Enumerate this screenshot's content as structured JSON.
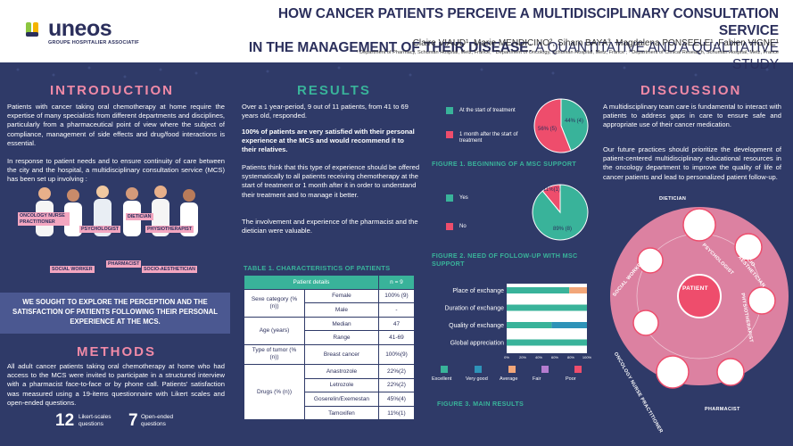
{
  "header": {
    "logo_text": "uneos",
    "logo_sub": "GROUPE HOSPITALIER ASSOCIATIF",
    "title_main": "HOW CANCER PATIENTS PERCEIVE A MULTIDISCIPLINARY CONSULTATION SERVICE",
    "title_line2": "IN THE MANAGEMENT OF THEIR DISEASE",
    "title_sub": ": A QUANTITATIVE AND A QUALITATIVE STUDY",
    "authors": "Claire VIAUD¹, Marie MENDICINO², Siham BAYA³, Magdalena PONSEELE¹, Fabien VIGNE¹",
    "affiliations": "¹ Department of Pharmacy, Schuman Hospital, Metz, France; ² Department of Oncology, Schuman Hospital, Metz, France ; ³ Department of Clinical Research, Schuman Hospital, Metz, France"
  },
  "introduction": {
    "title": "INTRODUCTION",
    "p1": "Patients with cancer taking oral chemotherapy at home require the expertise of many specialists from different departments and disciplines, particularly from a pharmaceutical point of view where the subject of compliance, management of side effects and drug/food interactions is essential.",
    "p2": "In response to patient needs and to ensure continuity of care between the city and the hospital, a multidisciplinary consultation service (MCS) has been set up involving :",
    "roles": [
      "ONCOLOGY NURSE PRACTITIONER",
      "PSYCHOLOGIST",
      "DIETICIAN",
      "PHYSIOTHERAPIST",
      "SOCIAL WORKER",
      "PHARMACIST",
      "SOCIO-AESTHETICIAN"
    ],
    "highlight": "WE SOUGHT TO EXPLORE THE PERCEPTION AND THE SATISFACTION OF PATIENTS FOLLOWING THEIR PERSONAL EXPERIENCE AT THE MCS."
  },
  "methods": {
    "title": "METHODS",
    "p1": "All adult cancer patients taking oral chemotherapy at home who had access to the MCS were invited to participate in a structured interview with a pharmacist face-to-face or by phone call. Patients' satisfaction was measured using a 19-items questionnaire with Likert scales and open-ended questions.",
    "stat1_num": "12",
    "stat1_lbl": "Likert-scales questions",
    "stat2_num": "7",
    "stat2_lbl": "Open-ended questions"
  },
  "results": {
    "title": "RESULTS",
    "p1": "Over a 1 year-period, 9 out of 11 patients, from 41 to 69 years old, responded.",
    "p2": "100% of patients are very satisfied with their personal experience at the MCS and would recommend it to their relatives.",
    "p3": "Patients think that this type of experience should be offered systematically to all patients receiving chemotherapy at the start of treatment or 1 month after it in order to understand their treatment and to manage it better.",
    "p4": "The involvement and experience of the pharmacist and the dietician were valuable."
  },
  "table": {
    "title": "TABLE 1. CHARACTERISTICS OF PATIENTS",
    "head_left": "Patient details",
    "head_right": "n = 9",
    "rows": {
      "sex_cat": "Sexe category (% (n))",
      "female": "Female",
      "female_v": "100% (9)",
      "male": "Male",
      "male_v": "-",
      "age_cat": "Age     (years)",
      "median": "Median",
      "median_v": "47",
      "range": "Range",
      "range_v": "41-69",
      "tumor_cat": "Type of tumor (% (n))",
      "breast": "Breast cancer",
      "breast_v": "100%(9)",
      "drugs_cat": "Drugs (% (n))",
      "anastrozole": "Anastrozole",
      "anastrozole_v": "22%(2)",
      "letrozole": "Letrozole",
      "letrozole_v": "22%(2)",
      "goserelin": "Goserelin/Exemestan",
      "goserelin_v": "45%(4)",
      "tamoxifen": "Tamoxifen",
      "tamoxifen_v": "11%(1)"
    }
  },
  "chart_data": [
    {
      "type": "pie",
      "title": "FIGURE 1. BEGINNING OF A MSC SUPPORT",
      "categories": [
        "At the start of treatment",
        "1 month after the start of treatment"
      ],
      "values": [
        44,
        56
      ],
      "labels": [
        "44% (4)",
        "56% (5)"
      ],
      "colors": [
        "#39b39a",
        "#ee4d6c"
      ]
    },
    {
      "type": "pie",
      "title": "FIGURE 2. NEED OF FOLLOW-UP WITH MSC SUPPORT",
      "categories": [
        "Yes",
        "No"
      ],
      "values": [
        89,
        11
      ],
      "labels": [
        "89% (8)",
        "11%(1)"
      ],
      "colors": [
        "#39b39a",
        "#ee4d6c"
      ]
    },
    {
      "type": "bar",
      "title": "FIGURE 3. MAIN RESULTS",
      "categories": [
        "Place of exchange",
        "Duration of exchange",
        "Quality of exchange",
        "Global appreciation"
      ],
      "series": [
        {
          "name": "Excellent",
          "values": [
            78,
            100,
            56,
            100
          ],
          "color": "#39b39a"
        },
        {
          "name": "Very good",
          "values": [
            0,
            0,
            44,
            0
          ],
          "color": "#2e93b8"
        },
        {
          "name": "Average",
          "values": [
            22,
            0,
            0,
            0
          ],
          "color": "#f2a679"
        },
        {
          "name": "Fair",
          "values": [
            0,
            0,
            0,
            0
          ],
          "color": "#b57ccf"
        },
        {
          "name": "Poor",
          "values": [
            0,
            0,
            0,
            0
          ],
          "color": "#ee4d6c"
        }
      ],
      "xticks": [
        "0%",
        "20%",
        "40%",
        "60%",
        "80%",
        "100%"
      ],
      "xlim": [
        0,
        100
      ]
    }
  ],
  "discussion": {
    "title": "DISCUSSION",
    "p1": "A multidisciplinary team care is fundamental to interact with patients to address gaps in care to ensure safe and appropriate use of their cancer medication.",
    "p2": "Our future practices should prioritize the development of patient-centered multidisciplinary educational resources in the oncology department to improve the quality of life of cancer patients and lead to personalized patient follow-up.",
    "center": "PATIENT",
    "nodes": [
      "DIETICIAN",
      "PSYCHOLOGIST",
      "SOCIO-AESTHETICIAN",
      "SOCIAL WORKER",
      "PHYSIOTHERAPIST",
      "ONCOLOGY NURSE PRACTITIONER",
      "PHARMACIST"
    ]
  }
}
